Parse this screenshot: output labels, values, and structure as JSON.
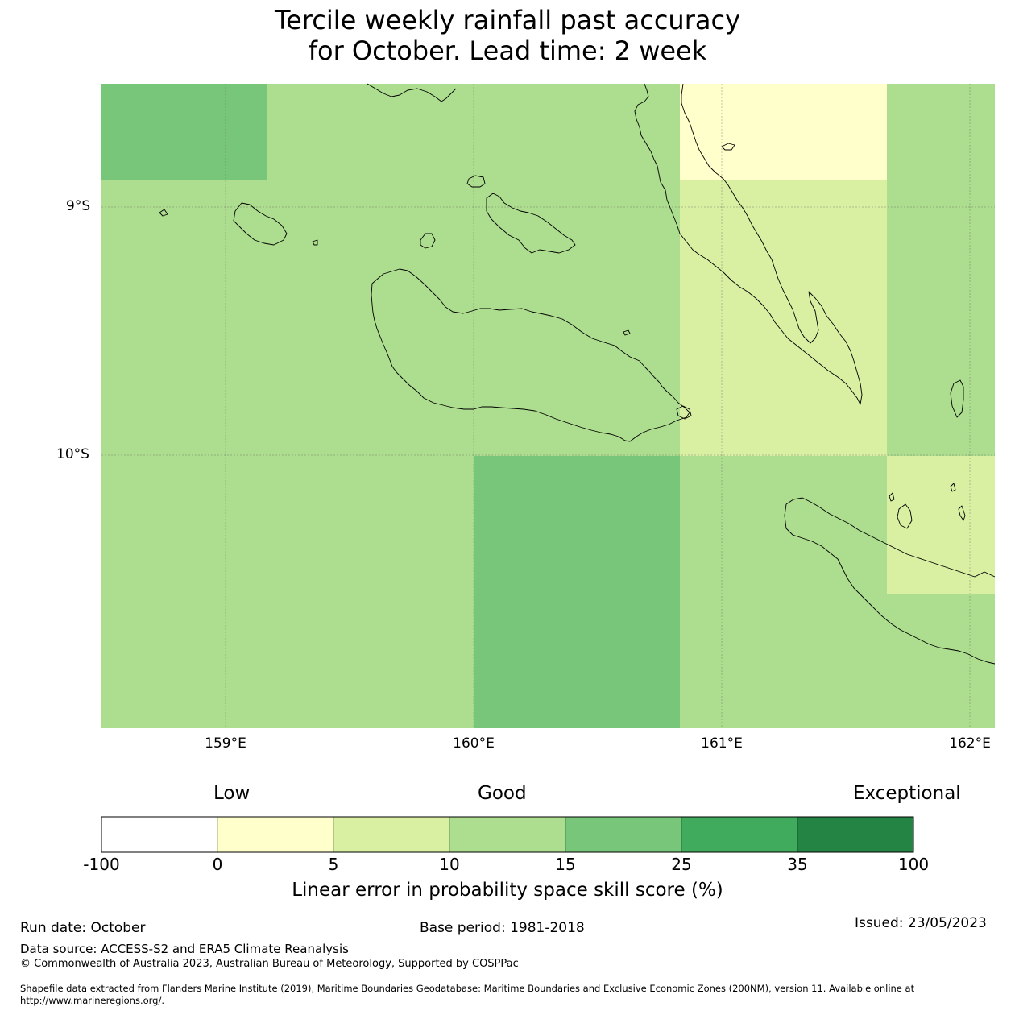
{
  "title": {
    "line1": "Tercile weekly rainfall past accuracy",
    "line2": "for October. Lead time: 2 week"
  },
  "map": {
    "lat_labels": [
      "9°S",
      "10°S"
    ],
    "lon_labels": [
      "159°E",
      "160°E",
      "161°E",
      "162°E"
    ],
    "skill_cells": [
      {
        "lon": [
          158.5,
          159.17
        ],
        "lat": [
          -8.5,
          -8.89
        ],
        "class": "15-25"
      },
      {
        "lon": [
          159.17,
          160.83
        ],
        "lat": [
          -8.5,
          -8.89
        ],
        "class": "10-15"
      },
      {
        "lon": [
          160.83,
          161.67
        ],
        "lat": [
          -8.5,
          -8.89
        ],
        "class": "0-5"
      },
      {
        "lon": [
          161.67,
          162.1
        ],
        "lat": [
          -8.5,
          -8.89
        ],
        "class": "10-15"
      },
      {
        "lon": [
          158.5,
          160.83
        ],
        "lat": [
          -8.89,
          -10.0
        ],
        "class": "10-15"
      },
      {
        "lon": [
          160.83,
          161.67
        ],
        "lat": [
          -8.89,
          -10.0
        ],
        "class": "5-10"
      },
      {
        "lon": [
          161.67,
          162.1
        ],
        "lat": [
          -8.89,
          -10.0
        ],
        "class": "10-15"
      },
      {
        "lon": [
          158.5,
          160.0
        ],
        "lat": [
          -10.0,
          -11.1
        ],
        "class": "10-15"
      },
      {
        "lon": [
          160.0,
          160.83
        ],
        "lat": [
          -10.0,
          -11.1
        ],
        "class": "15-25"
      },
      {
        "lon": [
          160.83,
          161.67
        ],
        "lat": [
          -10.0,
          -11.1
        ],
        "class": "10-15"
      },
      {
        "lon": [
          161.67,
          162.1
        ],
        "lat": [
          -10.0,
          -10.56
        ],
        "class": "5-10"
      },
      {
        "lon": [
          161.67,
          162.1
        ],
        "lat": [
          -10.56,
          -11.1
        ],
        "class": "10-15"
      }
    ]
  },
  "colorbar": {
    "words": {
      "low": "Low",
      "good": "Good",
      "exceptional": "Exceptional"
    },
    "ticks": [
      "-100",
      "0",
      "5",
      "10",
      "15",
      "25",
      "35",
      "100"
    ],
    "colors": [
      "#ffffff",
      "#ffffcc",
      "#d9f0a3",
      "#addd8e",
      "#78c679",
      "#41ab5d",
      "#238443"
    ],
    "label": "Linear error in probability space skill score (%)"
  },
  "footer": {
    "run_date": "Run date: October",
    "base_period": "Base period: 1981-2018",
    "issued": "Issued: 23/05/2023",
    "data_source": "Data source: ACCESS-S2 and ERA5 Climate Reanalysis",
    "copyright": "© Commonwealth of Australia 2023, Australian Bureau of Meteorology, Supported by COSPPac",
    "shapefile_line1": "Shapefile data extracted from Flanders Marine Institute (2019), Maritime Boundaries Geodatabase: Maritime Boundaries and Exclusive Economic Zones (200NM), version 11. Available online at",
    "shapefile_line2": "http://www.marineregions.org/."
  }
}
